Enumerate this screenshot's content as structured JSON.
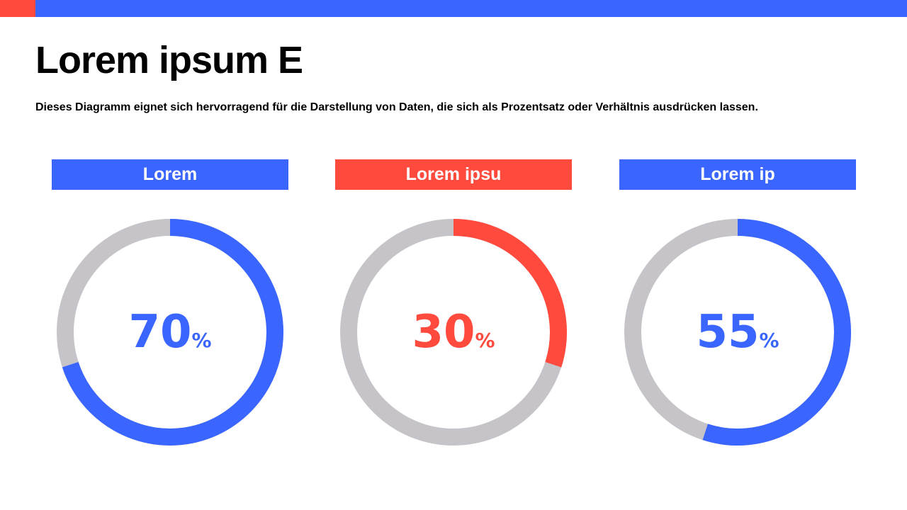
{
  "colors": {
    "blue": "#3a66ff",
    "red": "#ff4a3d",
    "track": "#c6c4c8"
  },
  "title": "Lorem ipsum E",
  "subtitle": "Dieses Diagramm eignet sich hervorragend für die Darstellung von Daten, die sich als Prozentsatz oder Verhältnis ausdrücken lassen.",
  "chart_data": [
    {
      "type": "pie",
      "label": "Lorem",
      "value": 70,
      "unit": "%",
      "color": "#3a66ff"
    },
    {
      "type": "pie",
      "label": "Lorem ipsu",
      "value": 30,
      "unit": "%",
      "color": "#ff4a3d"
    },
    {
      "type": "pie",
      "label": "Lorem ip",
      "value": 55,
      "unit": "%",
      "color": "#3a66ff"
    }
  ]
}
